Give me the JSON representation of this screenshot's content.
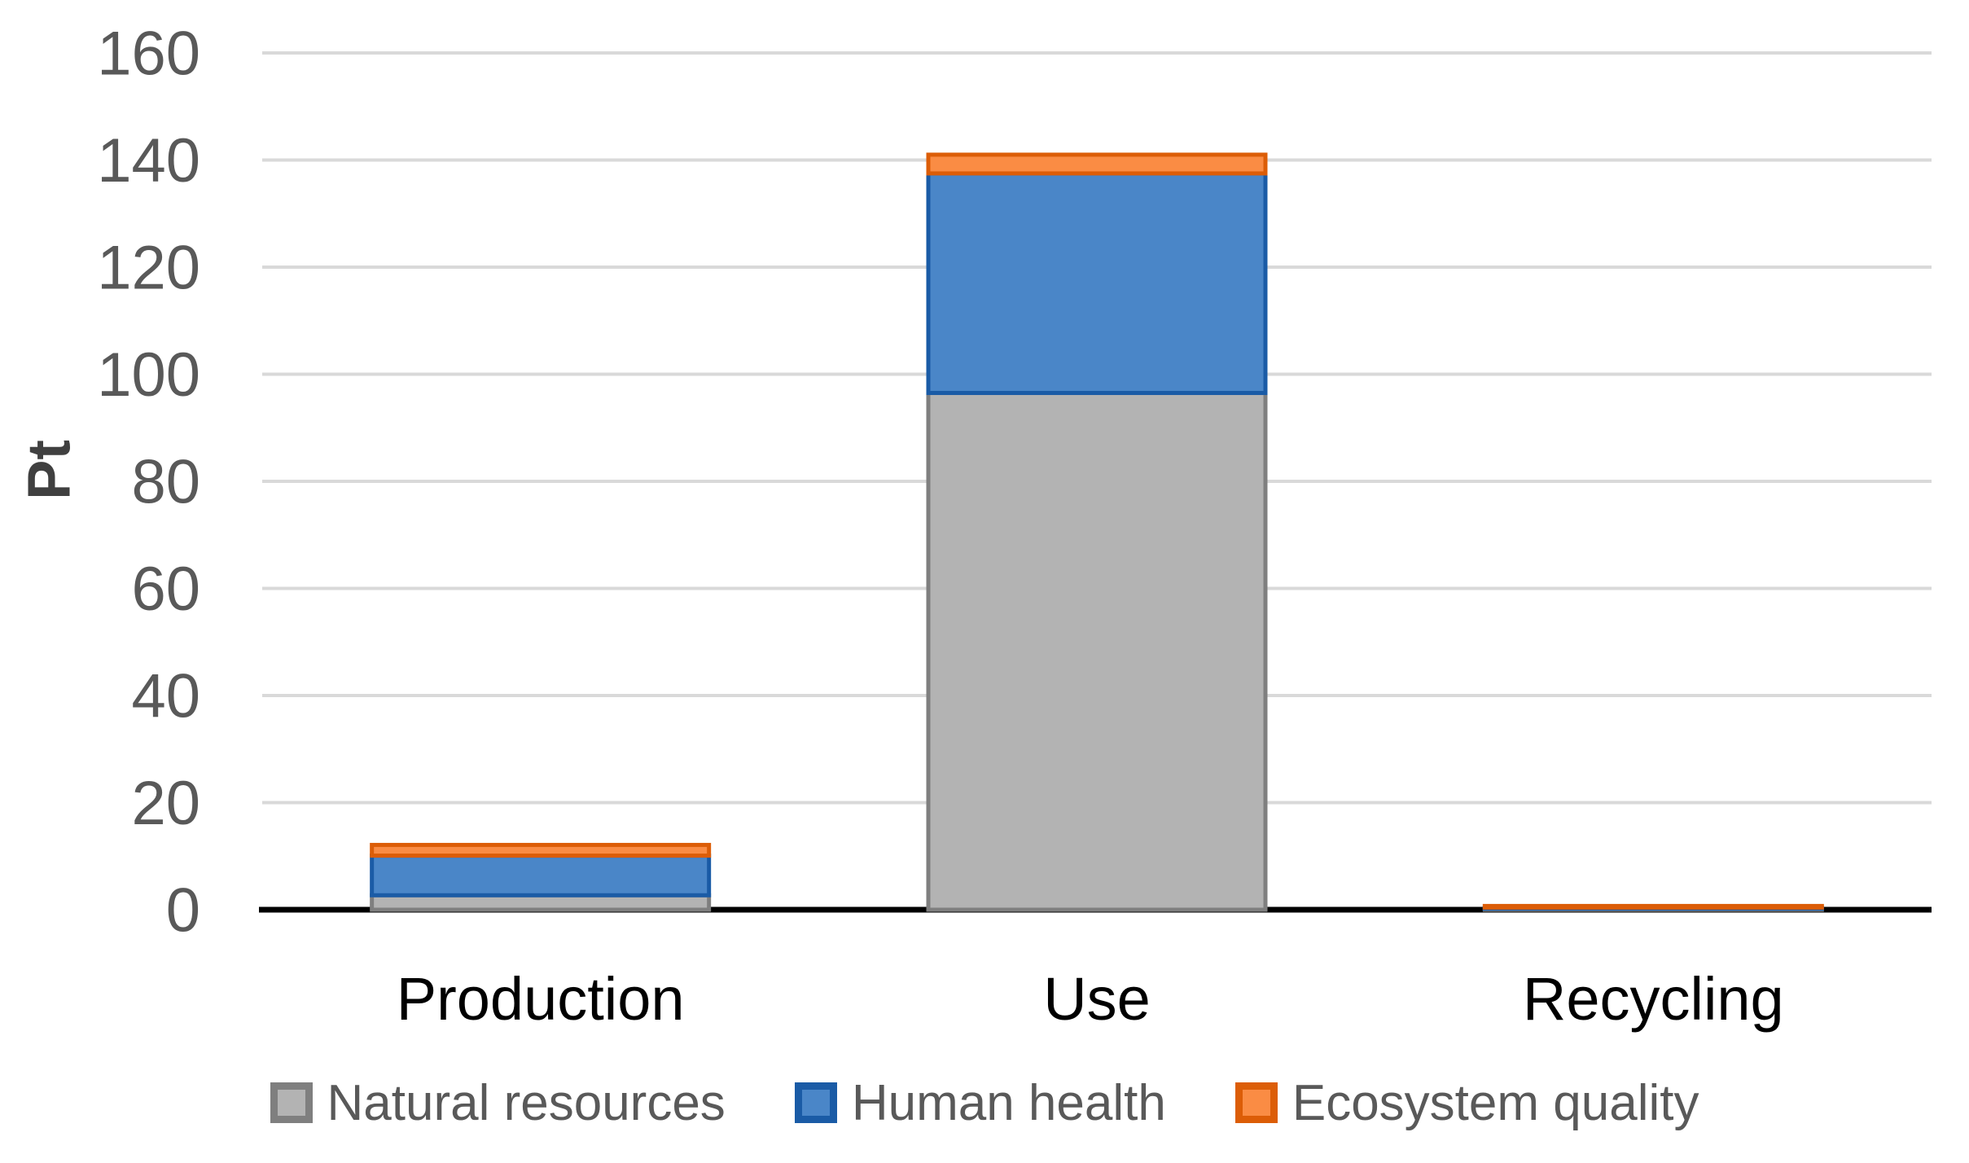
{
  "chart_data": {
    "type": "bar",
    "stacked": true,
    "title": "",
    "xlabel": "",
    "ylabel": "Pt",
    "categories": [
      "Production",
      "Use",
      "Recycling"
    ],
    "series": [
      {
        "name": "Natural resources",
        "values": [
          2.7,
          96.5,
          0.2
        ],
        "fill": "#B3B3B3",
        "border": "#7F7F7F"
      },
      {
        "name": "Human health",
        "values": [
          7.4,
          41.0,
          0.2
        ],
        "fill": "#4A86C8",
        "border": "#1A5BA6"
      },
      {
        "name": "Ecosystem quality",
        "values": [
          2.0,
          3.5,
          0.3
        ],
        "fill": "#FA8C44",
        "border": "#DC5D07"
      }
    ],
    "totals": [
      12.1,
      141.0,
      0.7
    ],
    "ylim": [
      0,
      160
    ],
    "yticks": [
      0,
      20,
      40,
      60,
      80,
      100,
      120,
      140,
      160
    ],
    "grid": true,
    "legend_position": "bottom"
  },
  "palette": {
    "background": "#FFFFFF",
    "gridline": "#D9D9D9",
    "axis_line": "#000000",
    "tick_text": "#595959",
    "category_text": "#000000",
    "legend_text": "#595959",
    "y_title_text": "#404040"
  }
}
